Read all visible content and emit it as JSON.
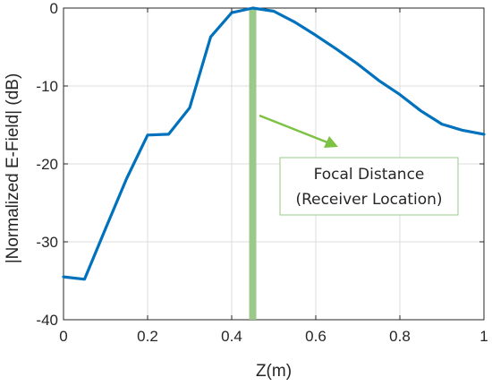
{
  "chart_data": {
    "type": "line",
    "xlabel": "Z(m)",
    "ylabel": "|Normalized E-Field| (dB)",
    "xlim": [
      0,
      1
    ],
    "ylim": [
      -40,
      0
    ],
    "xticks": [
      0,
      0.2,
      0.4,
      0.6,
      0.8,
      1
    ],
    "xtick_labels": [
      "0",
      "0.2",
      "0.4",
      "0.6",
      "0.8",
      "1"
    ],
    "yticks": [
      -40,
      -30,
      -20,
      -10,
      0
    ],
    "ytick_labels": [
      "-40",
      "-30",
      "-20",
      "-10",
      "0"
    ],
    "grid": true,
    "series": [
      {
        "color": "#0072BD",
        "x": [
          0,
          0.05,
          0.1,
          0.15,
          0.2,
          0.25,
          0.3,
          0.35,
          0.4,
          0.45,
          0.5,
          0.55,
          0.6,
          0.65,
          0.7,
          0.75,
          0.8,
          0.85,
          0.9,
          0.95,
          1.0
        ],
        "y": [
          -34.5,
          -34.8,
          -28.3,
          -21.9,
          -16.3,
          -16.2,
          -12.8,
          -3.7,
          -0.6,
          0.0,
          -0.4,
          -1.8,
          -3.5,
          -5.3,
          -7.2,
          -9.3,
          -11.1,
          -13.2,
          -14.9,
          -15.7,
          -16.2
        ]
      }
    ],
    "marker_line": {
      "x": 0.45,
      "color": "#9BC98A"
    },
    "annotation": {
      "line1": "Focal Distance",
      "line2": "(Receiver Location)",
      "arrow_color": "#7DC242",
      "box_border": "#9BC98A"
    }
  }
}
